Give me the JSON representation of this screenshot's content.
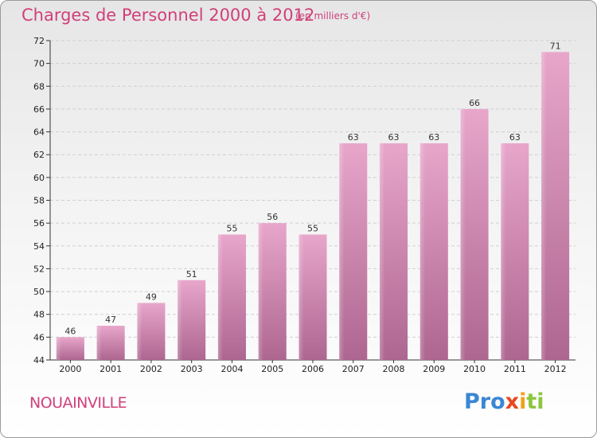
{
  "header": {
    "title": "Charges de Personnel 2000 à 2012",
    "subtitle": "(en milliers d'€)"
  },
  "commune": "NOUAINVILLE",
  "logo": {
    "text": "Proxiti"
  },
  "colors": {
    "accent": "#d0407a",
    "bar_top": "#e8a6cb",
    "bar_bottom": "#ad6690",
    "grid": "#cfcfcf"
  },
  "chart_data": {
    "type": "bar",
    "categories": [
      "2000",
      "2001",
      "2002",
      "2003",
      "2004",
      "2005",
      "2006",
      "2007",
      "2008",
      "2009",
      "2010",
      "2011",
      "2012"
    ],
    "values": [
      46,
      47,
      49,
      51,
      55,
      56,
      55,
      63,
      63,
      63,
      66,
      63,
      71
    ],
    "title": "Charges de Personnel 2000 à 2012",
    "xlabel": "",
    "ylabel": "",
    "ylim": [
      44,
      72
    ],
    "yticks": [
      44,
      46,
      48,
      50,
      52,
      54,
      56,
      58,
      60,
      62,
      64,
      66,
      68,
      70,
      72
    ],
    "grid": true,
    "legend": "none"
  }
}
